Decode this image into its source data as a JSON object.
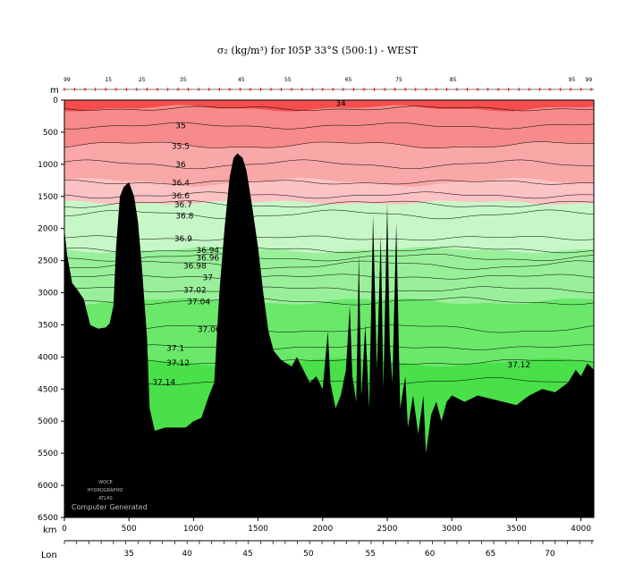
{
  "title": "σ₂ (kg/m³) for I05P 33°S (500:1) - WEST",
  "watermark": {
    "line1": "WOCE",
    "line2": "HYDROGRAPHIC",
    "line3": "ATLAS",
    "caption": "Computer Generated"
  },
  "chart_data": {
    "type": "area",
    "title": "σ₂ (kg/m³) for I05P 33°S (500:1) - WEST",
    "xlabel": "km",
    "ylabel": "m",
    "x2label": "Lon",
    "xlim": [
      0,
      4100
    ],
    "ylim": [
      6500,
      0
    ],
    "grid": false,
    "x_ticks": [
      0,
      500,
      1000,
      1500,
      2000,
      2500,
      3000,
      3500,
      4000
    ],
    "y_ticks": [
      0,
      500,
      1000,
      1500,
      2000,
      2500,
      3000,
      3500,
      4000,
      4500,
      5000,
      5500,
      6000,
      6500
    ],
    "lon_ticks": [
      {
        "lon": 35,
        "km": 500
      },
      {
        "lon": 40,
        "km": 950
      },
      {
        "lon": 45,
        "km": 1420
      },
      {
        "lon": 50,
        "km": 1890
      },
      {
        "lon": 55,
        "km": 2370
      },
      {
        "lon": 60,
        "km": 2830
      },
      {
        "lon": 65,
        "km": 3300
      },
      {
        "lon": 70,
        "km": 3760
      }
    ],
    "stations": [
      {
        "label": "99",
        "km": 20
      },
      {
        "label": "15",
        "km": 340
      },
      {
        "label": "25",
        "km": 600
      },
      {
        "label": "35",
        "km": 920
      },
      {
        "label": "45",
        "km": 1370
      },
      {
        "label": "55",
        "km": 1730
      },
      {
        "label": "65",
        "km": 2200
      },
      {
        "label": "75",
        "km": 2590
      },
      {
        "label": "85",
        "km": 3010
      },
      {
        "label": "95",
        "km": 3930
      },
      {
        "label": "99",
        "km": 4060
      }
    ],
    "contour_labels": [
      {
        "label": "34",
        "x": 2140,
        "y": 50
      },
      {
        "label": "35",
        "x": 900,
        "y": 400
      },
      {
        "label": "35.5",
        "x": 900,
        "y": 720
      },
      {
        "label": "36",
        "x": 900,
        "y": 1000
      },
      {
        "label": "36.4",
        "x": 900,
        "y": 1290
      },
      {
        "label": "36.6",
        "x": 900,
        "y": 1490
      },
      {
        "label": "36.7",
        "x": 920,
        "y": 1630
      },
      {
        "label": "36.8",
        "x": 930,
        "y": 1800
      },
      {
        "label": "36.9",
        "x": 920,
        "y": 2160
      },
      {
        "label": "36.94",
        "x": 1110,
        "y": 2340
      },
      {
        "label": "36.96",
        "x": 1110,
        "y": 2460
      },
      {
        "label": "36.98",
        "x": 1010,
        "y": 2580
      },
      {
        "label": "37",
        "x": 1110,
        "y": 2760
      },
      {
        "label": "37.02",
        "x": 1010,
        "y": 2960
      },
      {
        "label": "37.04",
        "x": 1040,
        "y": 3140
      },
      {
        "label": "37.06",
        "x": 1120,
        "y": 3570
      },
      {
        "label": "37.1",
        "x": 860,
        "y": 3860
      },
      {
        "label": "37.12",
        "x": 880,
        "y": 4090
      },
      {
        "label": "37.12",
        "x": 3520,
        "y": 4120
      },
      {
        "label": "37.14",
        "x": 770,
        "y": 4390
      }
    ],
    "isopycnal_depths": [
      {
        "level": 34,
        "depth": 130
      },
      {
        "level": 35,
        "depth": 400
      },
      {
        "level": 35.5,
        "depth": 700
      },
      {
        "level": 36,
        "depth": 1000
      },
      {
        "level": 36.4,
        "depth": 1280
      },
      {
        "level": 36.6,
        "depth": 1480
      },
      {
        "level": 36.7,
        "depth": 1620
      },
      {
        "level": 36.8,
        "depth": 1780
      },
      {
        "level": 36.9,
        "depth": 2150
      },
      {
        "level": 36.94,
        "depth": 2330
      },
      {
        "level": 36.96,
        "depth": 2450
      },
      {
        "level": 36.98,
        "depth": 2570
      },
      {
        "level": 37,
        "depth": 2750
      },
      {
        "level": 37.02,
        "depth": 2950
      },
      {
        "level": 37.04,
        "depth": 3130
      },
      {
        "level": 37.06,
        "depth": 3560
      },
      {
        "level": 37.1,
        "depth": 3850
      },
      {
        "level": 37.12,
        "depth": 4080
      },
      {
        "level": 37.14,
        "depth": 4380
      }
    ],
    "bottom_profile": [
      [
        0,
        2000
      ],
      [
        20,
        2400
      ],
      [
        60,
        2850
      ],
      [
        100,
        2950
      ],
      [
        150,
        3100
      ],
      [
        200,
        3500
      ],
      [
        260,
        3560
      ],
      [
        320,
        3540
      ],
      [
        350,
        3480
      ],
      [
        380,
        3200
      ],
      [
        400,
        2300
      ],
      [
        430,
        1500
      ],
      [
        460,
        1350
      ],
      [
        500,
        1280
      ],
      [
        540,
        1500
      ],
      [
        570,
        1900
      ],
      [
        600,
        2600
      ],
      [
        640,
        3700
      ],
      [
        660,
        4800
      ],
      [
        700,
        5150
      ],
      [
        780,
        5100
      ],
      [
        860,
        5100
      ],
      [
        940,
        5100
      ],
      [
        1000,
        5000
      ],
      [
        1060,
        4950
      ],
      [
        1120,
        4600
      ],
      [
        1160,
        4400
      ],
      [
        1200,
        3000
      ],
      [
        1240,
        2000
      ],
      [
        1280,
        1200
      ],
      [
        1310,
        900
      ],
      [
        1340,
        830
      ],
      [
        1380,
        900
      ],
      [
        1410,
        1100
      ],
      [
        1450,
        1600
      ],
      [
        1500,
        2300
      ],
      [
        1540,
        3000
      ],
      [
        1580,
        3600
      ],
      [
        1620,
        3900
      ],
      [
        1680,
        4050
      ],
      [
        1760,
        4150
      ],
      [
        1800,
        4000
      ],
      [
        1850,
        4200
      ],
      [
        1900,
        4400
      ],
      [
        1950,
        4300
      ],
      [
        2000,
        4500
      ],
      [
        2040,
        3600
      ],
      [
        2060,
        4400
      ],
      [
        2100,
        4800
      ],
      [
        2140,
        4600
      ],
      [
        2180,
        4200
      ],
      [
        2210,
        3200
      ],
      [
        2230,
        4300
      ],
      [
        2260,
        4700
      ],
      [
        2280,
        2400
      ],
      [
        2300,
        4600
      ],
      [
        2330,
        3500
      ],
      [
        2360,
        4800
      ],
      [
        2390,
        1800
      ],
      [
        2420,
        4200
      ],
      [
        2450,
        2100
      ],
      [
        2470,
        4500
      ],
      [
        2500,
        1600
      ],
      [
        2520,
        3800
      ],
      [
        2540,
        4400
      ],
      [
        2570,
        1900
      ],
      [
        2600,
        4800
      ],
      [
        2640,
        4300
      ],
      [
        2660,
        5100
      ],
      [
        2700,
        4600
      ],
      [
        2740,
        5200
      ],
      [
        2780,
        4600
      ],
      [
        2800,
        5500
      ],
      [
        2840,
        4900
      ],
      [
        2880,
        4700
      ],
      [
        2920,
        5000
      ],
      [
        2960,
        4700
      ],
      [
        3000,
        4600
      ],
      [
        3100,
        4700
      ],
      [
        3200,
        4600
      ],
      [
        3300,
        4650
      ],
      [
        3400,
        4700
      ],
      [
        3500,
        4750
      ],
      [
        3600,
        4600
      ],
      [
        3700,
        4500
      ],
      [
        3800,
        4550
      ],
      [
        3900,
        4400
      ],
      [
        3960,
        4200
      ],
      [
        4000,
        4300
      ],
      [
        4050,
        4100
      ],
      [
        4100,
        4200
      ]
    ],
    "fill_colors": {
      "surface": "#f54d4d",
      "upper": "#f78a8a",
      "mid_red": "#f9a7a7",
      "light_red": "#fbc3c3",
      "light_green": "#c7f7c7",
      "mid_green": "#9af09a",
      "deep_green": "#6ae86a",
      "abyss_green": "#49e049",
      "bottom": "#000000"
    }
  }
}
